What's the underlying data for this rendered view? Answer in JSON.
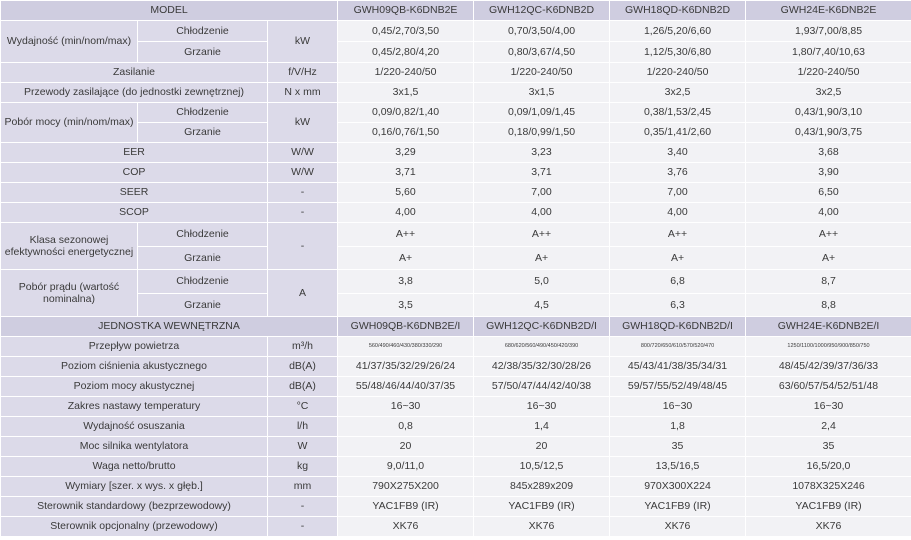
{
  "header": {
    "model_label": "MODEL",
    "models": [
      "GWH09QB-K6DNB2E",
      "GWH12QC-K6DNB2D",
      "GWH18QD-K6DNB2D",
      "GWH24E-K6DNB2E"
    ]
  },
  "capacity": {
    "label": "Wydajność (min/nom/max)",
    "unit": "kW",
    "cooling": {
      "label": "Chłodzenie",
      "values": [
        "0,45/2,70/3,50",
        "0,70/3,50/4,00",
        "1,26/5,20/6,60",
        "1,93/7,00/8,85"
      ]
    },
    "heating": {
      "label": "Grzanie",
      "values": [
        "0,45/2,80/4,20",
        "0,80/3,67/4,50",
        "1,12/5,30/6,80",
        "1,80/7,40/10,63"
      ]
    }
  },
  "power_supply": {
    "label": "Zasilanie",
    "unit": "f/V/Hz",
    "values": [
      "1/220-240/50",
      "1/220-240/50",
      "1/220-240/50",
      "1/220-240/50"
    ]
  },
  "supply_wires": {
    "label": "Przewody zasilające (do jednostki zewnętrznej)",
    "unit": "N x mm",
    "values": [
      "3x1,5",
      "3x1,5",
      "3x2,5",
      "3x2,5"
    ]
  },
  "power_input": {
    "label": "Pobór mocy (min/nom/max)",
    "unit": "kW",
    "cooling": {
      "label": "Chłodzenie",
      "values": [
        "0,09/0,82/1,40",
        "0,09/1,09/1,45",
        "0,38/1,53/2,45",
        "0,43/1,90/3,10"
      ]
    },
    "heating": {
      "label": "Grzanie",
      "values": [
        "0,16/0,76/1,50",
        "0,18/0,99/1,50",
        "0,35/1,41/2,60",
        "0,43/1,90/3,75"
      ]
    }
  },
  "eer": {
    "label": "EER",
    "unit": "W/W",
    "values": [
      "3,29",
      "3,23",
      "3,40",
      "3,68"
    ]
  },
  "cop": {
    "label": "COP",
    "unit": "W/W",
    "values": [
      "3,71",
      "3,71",
      "3,76",
      "3,90"
    ]
  },
  "seer": {
    "label": "SEER",
    "unit": "-",
    "values": [
      "5,60",
      "7,00",
      "7,00",
      "6,50"
    ]
  },
  "scop": {
    "label": "SCOP",
    "unit": "-",
    "values": [
      "4,00",
      "4,00",
      "4,00",
      "4,00"
    ]
  },
  "energy_class": {
    "label": "Klasa sezonowej efektywności energetycznej",
    "unit": "-",
    "cooling": {
      "label": "Chłodzenie",
      "values": [
        "A++",
        "A++",
        "A++",
        "A++"
      ]
    },
    "heating": {
      "label": "Grzanie",
      "values": [
        "A+",
        "A+",
        "A+",
        "A+"
      ]
    }
  },
  "current": {
    "label": "Pobór prądu (wartość nominalna)",
    "unit": "A",
    "cooling": {
      "label": "Chłodzenie",
      "values": [
        "3,8",
        "5,0",
        "6,8",
        "8,7"
      ]
    },
    "heating": {
      "label": "Grzanie",
      "values": [
        "3,5",
        "4,5",
        "6,3",
        "8,8"
      ]
    }
  },
  "indoor_header": {
    "label": "JEDNOSTKA WEWNĘTRZNA",
    "models": [
      "GWH09QB-K6DNB2E/I",
      "GWH12QC-K6DNB2D/I",
      "GWH18QD-K6DNB2D/I",
      "GWH24E-K6DNB2E/I"
    ]
  },
  "airflow": {
    "label": "Przepływ powietrza",
    "unit": "m³/h",
    "values": [
      "560/490/460/430/380/330/290",
      "680/620/560/490/450/420/390",
      "800/720/650/610/570/520/470",
      "1250/1100/1000/950/900/850/750"
    ]
  },
  "sound_pressure": {
    "label": "Poziom ciśnienia akustycznego",
    "unit": "dB(A)",
    "values": [
      "41/37/35/32/29/26/24",
      "42/38/35/32/30/28/26",
      "45/43/41/38/35/34/31",
      "48/45/42/39/37/36/33"
    ]
  },
  "sound_power": {
    "label": "Poziom mocy akustycznej",
    "unit": "dB(A)",
    "values": [
      "55/48/46/44/40/37/35",
      "57/50/47/44/42/40/38",
      "59/57/55/52/49/48/45",
      "63/60/57/54/52/51/48"
    ]
  },
  "temp_range": {
    "label": "Zakres nastawy temperatury",
    "unit": "°C",
    "values": [
      "16~30",
      "16~30",
      "16~30",
      "16~30"
    ]
  },
  "dehumidification": {
    "label": "Wydajność osuszania",
    "unit": "l/h",
    "values": [
      "0,8",
      "1,4",
      "1,8",
      "2,4"
    ]
  },
  "fan_power": {
    "label": "Moc silnika wentylatora",
    "unit": "W",
    "values": [
      "20",
      "20",
      "35",
      "35"
    ]
  },
  "weight": {
    "label": "Waga netto/brutto",
    "unit": "kg",
    "values": [
      "9,0/11,0",
      "10,5/12,5",
      "13,5/16,5",
      "16,5/20,0"
    ]
  },
  "dimensions": {
    "label": "Wymiary [szer. x wys. x głęb.]",
    "unit": "mm",
    "values": [
      "790X275X200",
      "845x289x209",
      "970X300X224",
      "1078X325X246"
    ]
  },
  "std_controller": {
    "label": "Sterownik standardowy (bezprzewodowy)",
    "unit": "-",
    "values": [
      "YAC1FB9 (IR)",
      "YAC1FB9 (IR)",
      "YAC1FB9 (IR)",
      "YAC1FB9 (IR)"
    ]
  },
  "opt_controller": {
    "label": "Sterownik opcjonalny (przewodowy)",
    "unit": "-",
    "values": [
      "XK76",
      "XK76",
      "XK76",
      "XK76"
    ]
  }
}
